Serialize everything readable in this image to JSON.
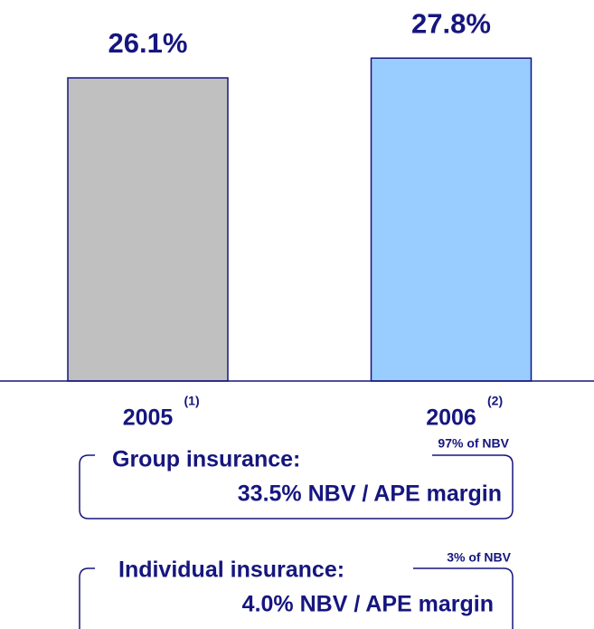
{
  "chart_data": {
    "type": "bar",
    "categories": [
      "2005",
      "2006"
    ],
    "category_notes": [
      "(1)",
      "(2)"
    ],
    "series": [
      {
        "colors": [
          "#c0c0c0",
          "#99ccff"
        ],
        "values": [
          26.1,
          27.8
        ],
        "value_labels": [
          "26.1%",
          "27.8%"
        ]
      }
    ],
    "ylim": [
      0,
      30
    ],
    "annotations": [
      {
        "title": "Group insurance:",
        "note": "97% of NBV",
        "text": "33.5% NBV / APE margin"
      },
      {
        "title": "Individual insurance:",
        "note": "3% of NBV",
        "text": "4.0% NBV / APE margin"
      }
    ]
  }
}
